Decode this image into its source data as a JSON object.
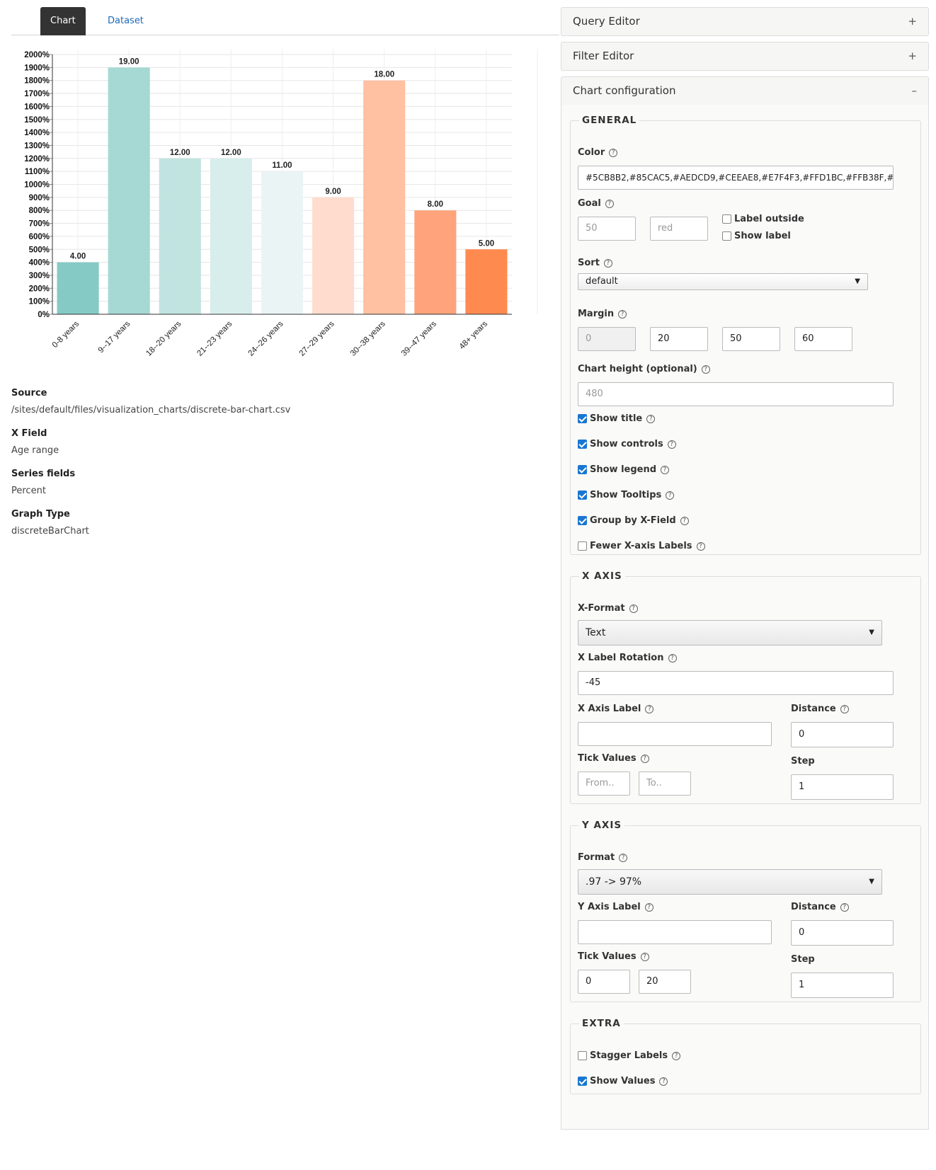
{
  "tabs": [
    {
      "label": "Chart"
    },
    {
      "label": "Dataset"
    }
  ],
  "chart_data": {
    "type": "bar",
    "categories": [
      "0-8 years",
      "9--17 years",
      "18--20 years",
      "21--23 years",
      "24--26 years",
      "27--29 years",
      "30--38 years",
      "39--47 years",
      "48+ years"
    ],
    "values": [
      4,
      19,
      12,
      12,
      11,
      9,
      18,
      8,
      5
    ],
    "value_labels": [
      "4.00",
      "19.00",
      "12.00",
      "12.00",
      "11.00",
      "9.00",
      "18.00",
      "8.00",
      "5.00"
    ],
    "colors": [
      "#85CAC5",
      "#A6D9D4",
      "#C1E4E1",
      "#D8EEEC",
      "#EBF4F5",
      "#FFDCCD",
      "#FFC1A2",
      "#FFA37C",
      "#FF8A50"
    ],
    "y_ticks": [
      "0%",
      "100%",
      "200%",
      "300%",
      "400%",
      "500%",
      "600%",
      "700%",
      "800%",
      "900%",
      "1000%",
      "1100%",
      "1200%",
      "1300%",
      "1400%",
      "1500%",
      "1600%",
      "1700%",
      "1800%",
      "1900%",
      "2000%"
    ],
    "ylim": [
      0,
      20
    ],
    "x_label_rotation": -45,
    "grid": true
  },
  "info": {
    "source_label": "Source",
    "source_value": "/sites/default/files/visualization_charts/discrete-bar-chart.csv",
    "xfield_label": "X Field",
    "xfield_value": "Age range",
    "series_label": "Series fields",
    "series_value": "Percent",
    "graph_label": "Graph Type",
    "graph_value": "discreteBarChart"
  },
  "panel": {
    "query_editor": "Query Editor",
    "filter_editor": "Filter Editor",
    "chart_config": "Chart configuration",
    "expand_symbol": "+",
    "collapse_symbol": "–",
    "help_symbol": "?"
  },
  "general": {
    "legend": "GENERAL",
    "color_label": "Color",
    "color_value": "#5CB8B2,#85CAC5,#AEDCD9,#CEEAE8,#E7F4F3,#FFD1BC,#FFB38F,#FF8",
    "goal_label": "Goal",
    "goal_value_placeholder": "50",
    "goal_color_placeholder": "red",
    "label_outside": "Label outside",
    "show_label": "Show label",
    "sort_label": "Sort",
    "sort_value": "default",
    "margin_label": "Margin",
    "margins": [
      "0",
      "20",
      "50",
      "60"
    ],
    "height_label": "Chart height (optional)",
    "height_placeholder": "480",
    "show_title": "Show title",
    "show_controls": "Show controls",
    "show_legend": "Show legend",
    "show_tooltips": "Show Tooltips",
    "group_by": "Group by X-Field",
    "fewer_labels": "Fewer X-axis Labels"
  },
  "xaxis": {
    "legend": "X AXIS",
    "format_label": "X-Format",
    "format_value": "Text",
    "rotation_label": "X Label Rotation",
    "rotation_value": "-45",
    "axis_label": "X Axis Label",
    "axis_value": "",
    "distance_label": "Distance",
    "distance_value": "0",
    "tick_label": "Tick Values",
    "from_placeholder": "From..",
    "to_placeholder": "To..",
    "step_label": "Step",
    "step_value": "1"
  },
  "yaxis": {
    "legend": "Y AXIS",
    "format_label": "Format",
    "format_value": ".97 -> 97%",
    "axis_label": "Y Axis Label",
    "axis_value": "",
    "distance_label": "Distance",
    "distance_value": "0",
    "tick_label": "Tick Values",
    "tick_from": "0",
    "tick_to": "20",
    "step_label": "Step",
    "step_value": "1"
  },
  "extra": {
    "legend": "EXTRA",
    "stagger": "Stagger Labels",
    "show_values": "Show Values"
  }
}
